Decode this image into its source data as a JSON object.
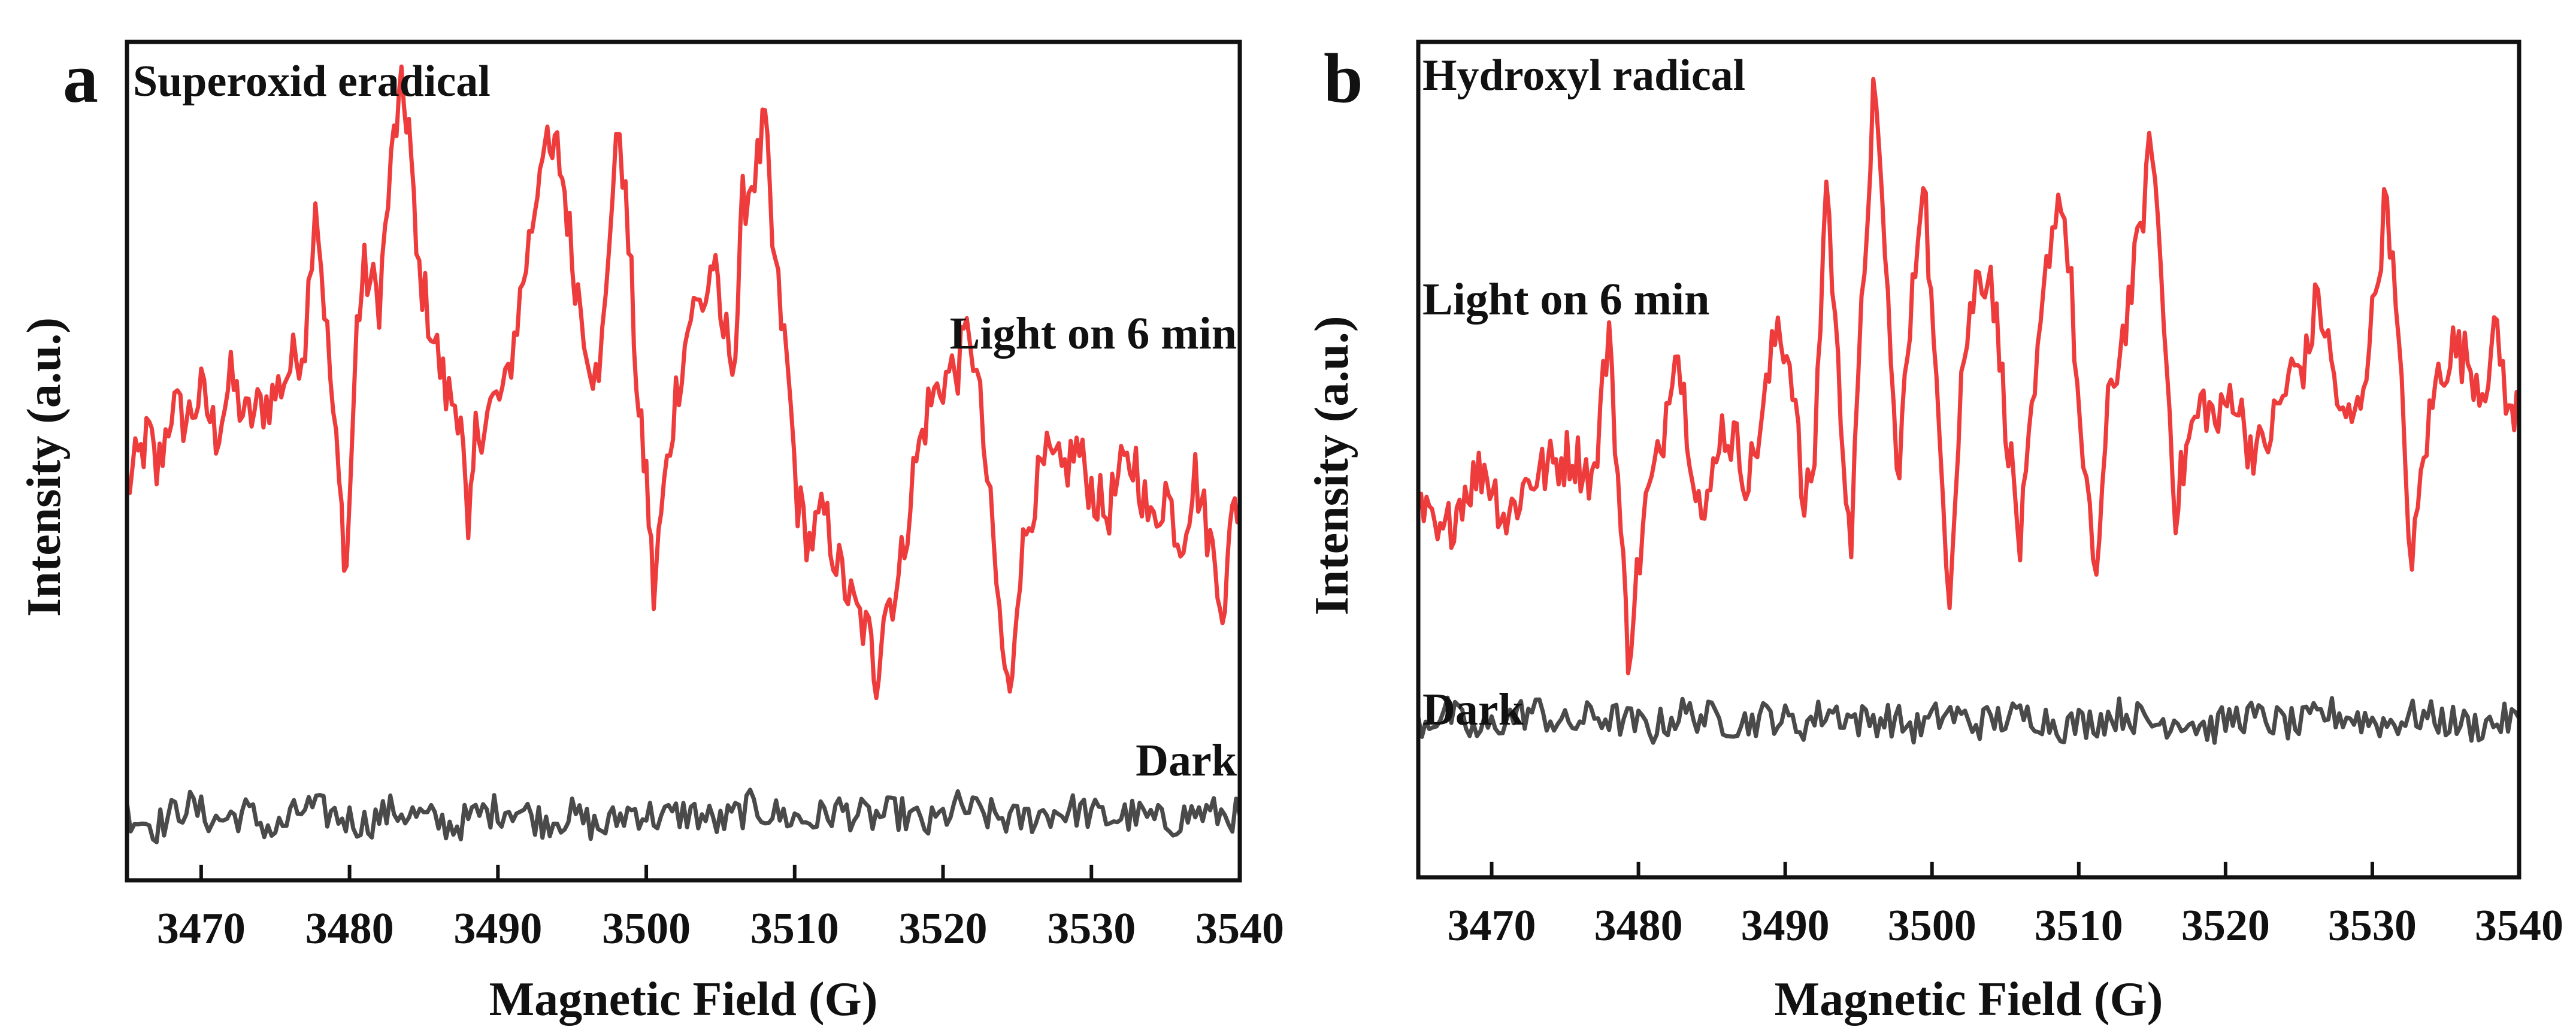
{
  "chart_data": [
    {
      "type": "line",
      "panel": "a",
      "title": "Superoxid eradical",
      "xlabel": "Magnetic Field (G)",
      "ylabel": "Intensity (a.u.)",
      "xlim": [
        3465,
        3540
      ],
      "ylim": [
        -1.2,
        1.9
      ],
      "xticks": [
        "3470",
        "3480",
        "3490",
        "3500",
        "3510",
        "3520",
        "3530",
        "3540"
      ],
      "grid": false,
      "series": [
        {
          "name": "Light on 6 min",
          "color": "#ee3b3b",
          "x": [
            3465,
            3466.5,
            3467,
            3468,
            3469,
            3470,
            3471,
            3472,
            3473,
            3474,
            3475,
            3476,
            3477,
            3477.7,
            3478.5,
            3479.3,
            3479.8,
            3480.5,
            3481,
            3482,
            3483,
            3483.5,
            3484,
            3484.5,
            3485.5,
            3486.5,
            3487.5,
            3488,
            3488.5,
            3489.5,
            3490.5,
            3491.5,
            3492.5,
            3493,
            3493.5,
            3494,
            3494.5,
            3495,
            3496,
            3496.8,
            3497.5,
            3498.2,
            3499,
            3499.5,
            3500,
            3500.5,
            3501,
            3502,
            3503,
            3504,
            3504.5,
            3505,
            3506,
            3506.5,
            3507.5,
            3508,
            3508.5,
            3509.5,
            3510.2,
            3511,
            3512,
            3513,
            3514,
            3515,
            3515.5,
            3516,
            3517,
            3518,
            3519,
            3520,
            3521,
            3521.8,
            3522.5,
            3523.2,
            3524,
            3524.5,
            3525,
            3526,
            3527,
            3528,
            3529,
            3530,
            3531,
            3532,
            3533,
            3534,
            3535,
            3536,
            3537,
            3538,
            3538.5,
            3539,
            3539.5,
            3540
          ],
          "values": [
            0.25,
            0.45,
            0.3,
            0.55,
            0.5,
            0.6,
            0.45,
            0.65,
            0.5,
            0.55,
            0.6,
            0.7,
            0.8,
            1.35,
            0.8,
            0.25,
            -0.05,
            0.85,
            1.05,
            0.95,
            1.55,
            1.7,
            1.6,
            1.1,
            0.85,
            0.6,
            0.55,
            0.0,
            0.45,
            0.55,
            0.6,
            0.95,
            1.3,
            1.55,
            1.45,
            1.5,
            1.35,
            1.1,
            0.8,
            0.6,
            1.2,
            1.6,
            1.0,
            0.5,
            0.3,
            -0.15,
            0.15,
            0.6,
            0.9,
            0.95,
            1.1,
            0.85,
            0.75,
            1.3,
            1.45,
            1.6,
            1.15,
            0.7,
            0.2,
            0.05,
            0.15,
            -0.05,
            -0.2,
            -0.3,
            -0.45,
            -0.2,
            -0.1,
            0.3,
            0.55,
            0.65,
            0.7,
            0.85,
            0.55,
            0.15,
            -0.35,
            -0.55,
            -0.1,
            0.2,
            0.35,
            0.3,
            0.4,
            0.25,
            0.15,
            0.3,
            0.35,
            0.1,
            0.25,
            0.05,
            0.3,
            0.05,
            -0.05,
            -0.25,
            0.25,
            0.15
          ]
        },
        {
          "name": "Dark",
          "color": "#4a4a4a",
          "x": [
            3465,
            3467,
            3469,
            3471,
            3473,
            3475,
            3477,
            3479,
            3481,
            3483,
            3485,
            3487,
            3489,
            3491,
            3493,
            3495,
            3497,
            3499,
            3501,
            3503,
            3505,
            3507,
            3509,
            3511,
            3513,
            3515,
            3517,
            3519,
            3521,
            3523,
            3525,
            3527,
            3529,
            3531,
            3533,
            3535,
            3537,
            3540
          ],
          "values": [
            -0.95,
            -1.0,
            -0.92,
            -0.98,
            -0.95,
            -1.02,
            -0.93,
            -0.96,
            -0.99,
            -0.94,
            -0.97,
            -1.0,
            -0.95,
            -0.93,
            -0.98,
            -0.96,
            -1.01,
            -0.94,
            -0.97,
            -0.95,
            -0.99,
            -0.93,
            -0.96,
            -0.98,
            -0.94,
            -0.97,
            -0.95,
            -1.0,
            -0.93,
            -0.96,
            -0.98,
            -0.95,
            -0.94,
            -0.97,
            -0.96,
            -0.99,
            -0.95,
            -0.96
          ]
        }
      ]
    },
    {
      "type": "line",
      "panel": "b",
      "title": "Hydroxyl radical",
      "xlabel": "Magnetic Field (G)",
      "ylabel": "Intensity (a.u.)",
      "xlim": [
        3465,
        3540
      ],
      "ylim": [
        -1.2,
        1.95
      ],
      "xticks": [
        "3470",
        "3480",
        "3490",
        "3500",
        "3510",
        "3520",
        "3530",
        "3540"
      ],
      "grid": false,
      "series": [
        {
          "name": "Light on 6 min",
          "color": "#ee3b3b",
          "x": [
            3465,
            3466.5,
            3468,
            3469.5,
            3471,
            3472.5,
            3474,
            3475.5,
            3477,
            3478,
            3478.8,
            3479.3,
            3480.5,
            3481.5,
            3482.5,
            3483.5,
            3484.5,
            3485.5,
            3486.5,
            3487.5,
            3488.5,
            3489.5,
            3490.5,
            3491.3,
            3492,
            3492.8,
            3493.6,
            3494.5,
            3495.2,
            3496,
            3496.8,
            3497.6,
            3498.5,
            3499.4,
            3500.3,
            3501.2,
            3502,
            3503,
            3504,
            3505,
            3506,
            3507,
            3508,
            3508.8,
            3509.5,
            3510.3,
            3511.2,
            3512,
            3513,
            3514,
            3515,
            3515.8,
            3516.6,
            3517.5,
            3518.5,
            3519.5,
            3520.5,
            3521.5,
            3522.5,
            3523.5,
            3524.5,
            3525.5,
            3526.3,
            3527,
            3528,
            3529,
            3530,
            3531,
            3532,
            3532.7,
            3533.5,
            3534.5,
            3535.5,
            3536.5,
            3537.5,
            3538.5,
            3539.5,
            3540
          ],
          "values": [
            0.2,
            0.05,
            0.25,
            0.35,
            0.15,
            0.3,
            0.35,
            0.4,
            0.3,
            0.9,
            0.1,
            -0.35,
            0.2,
            0.4,
            0.85,
            0.45,
            0.1,
            0.5,
            0.45,
            0.3,
            0.55,
            0.9,
            0.7,
            0.15,
            0.4,
            1.45,
            0.7,
            0.05,
            0.9,
            1.75,
            1.2,
            0.3,
            0.85,
            1.5,
            0.6,
            -0.1,
            0.7,
            1.05,
            1.1,
            0.55,
            0.05,
            0.6,
            1.2,
            1.4,
            1.0,
            0.3,
            -0.05,
            0.55,
            0.85,
            1.15,
            1.6,
            0.9,
            0.2,
            0.45,
            0.6,
            0.5,
            0.65,
            0.45,
            0.4,
            0.55,
            0.7,
            0.75,
            1.0,
            0.8,
            0.5,
            0.55,
            0.9,
            1.4,
            0.6,
            -0.05,
            0.4,
            0.7,
            0.8,
            0.75,
            0.65,
            0.85,
            0.5,
            0.6
          ]
        },
        {
          "name": "Dark",
          "color": "#4a4a4a",
          "x": [
            3465,
            3467,
            3469,
            3471,
            3473,
            3475,
            3477,
            3479,
            3481,
            3483,
            3485,
            3487,
            3489,
            3491,
            3493,
            3495,
            3497,
            3499,
            3501,
            3503,
            3505,
            3507,
            3509,
            3511,
            3513,
            3515,
            3517,
            3519,
            3521,
            3523,
            3525,
            3527,
            3529,
            3531,
            3533,
            3535,
            3537,
            3540
          ],
          "values": [
            -0.62,
            -0.58,
            -0.66,
            -0.6,
            -0.57,
            -0.63,
            -0.59,
            -0.61,
            -0.64,
            -0.58,
            -0.6,
            -0.62,
            -0.59,
            -0.63,
            -0.57,
            -0.61,
            -0.6,
            -0.64,
            -0.58,
            -0.62,
            -0.6,
            -0.59,
            -0.63,
            -0.61,
            -0.58,
            -0.62,
            -0.6,
            -0.64,
            -0.59,
            -0.61,
            -0.63,
            -0.58,
            -0.6,
            -0.62,
            -0.59,
            -0.61,
            -0.63,
            -0.6
          ]
        }
      ]
    }
  ]
}
